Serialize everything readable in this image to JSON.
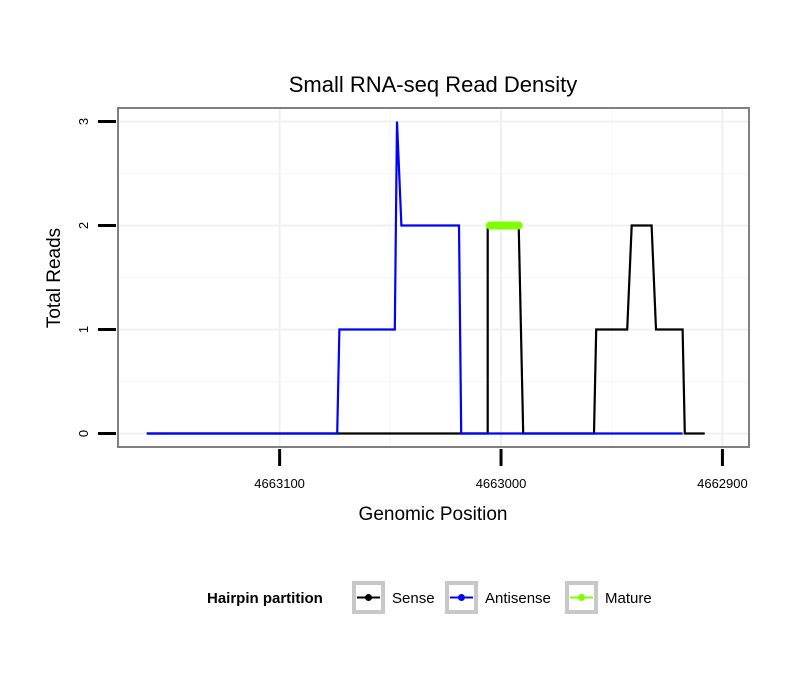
{
  "chart_data": {
    "type": "line",
    "title": "Small RNA-seq Read Density",
    "xlabel": "Genomic Position",
    "ylabel": "Total Reads",
    "x_reversed": true,
    "xlim": [
      4663173,
      4662888
    ],
    "ylim": [
      -0.13,
      3.13
    ],
    "x_ticks": [
      4663100,
      4663000,
      4662900
    ],
    "x_tick_labels": [
      "4663100",
      "4663000",
      "4662900"
    ],
    "y_ticks": [
      0,
      1,
      2,
      3
    ],
    "y_tick_labels": [
      "0",
      "1",
      "2",
      "3"
    ],
    "grid": true,
    "legend": {
      "title": "Hairpin partition",
      "position": "bottom",
      "entries": [
        {
          "label": "Sense",
          "color": "#000000"
        },
        {
          "label": "Antisense",
          "color": "#0000ff"
        },
        {
          "label": "Mature",
          "color": "#7fff00"
        }
      ]
    },
    "series": [
      {
        "name": "Sense",
        "color": "#000000",
        "points": [
          [
            4663160,
            0
          ],
          [
            4663006,
            0
          ],
          [
            4663006,
            2
          ],
          [
            4662992,
            2
          ],
          [
            4662990,
            0
          ],
          [
            4662958,
            0
          ],
          [
            4662957,
            1
          ],
          [
            4662943,
            1
          ],
          [
            4662941,
            2
          ],
          [
            4662932,
            2
          ],
          [
            4662930,
            1
          ],
          [
            4662918,
            1
          ],
          [
            4662917,
            0
          ],
          [
            4662908,
            0
          ]
        ]
      },
      {
        "name": "Antisense",
        "color": "#0000ff",
        "points": [
          [
            4663160,
            0
          ],
          [
            4663074,
            0
          ],
          [
            4663073,
            1
          ],
          [
            4663048,
            1
          ],
          [
            4663047,
            3
          ],
          [
            4663045,
            2
          ],
          [
            4663019,
            2
          ],
          [
            4663018,
            0
          ],
          [
            4662918,
            0
          ]
        ]
      },
      {
        "name": "Mature",
        "color": "#7fff00",
        "points": [
          [
            4663005,
            2
          ],
          [
            4662992,
            2
          ]
        ]
      }
    ]
  }
}
